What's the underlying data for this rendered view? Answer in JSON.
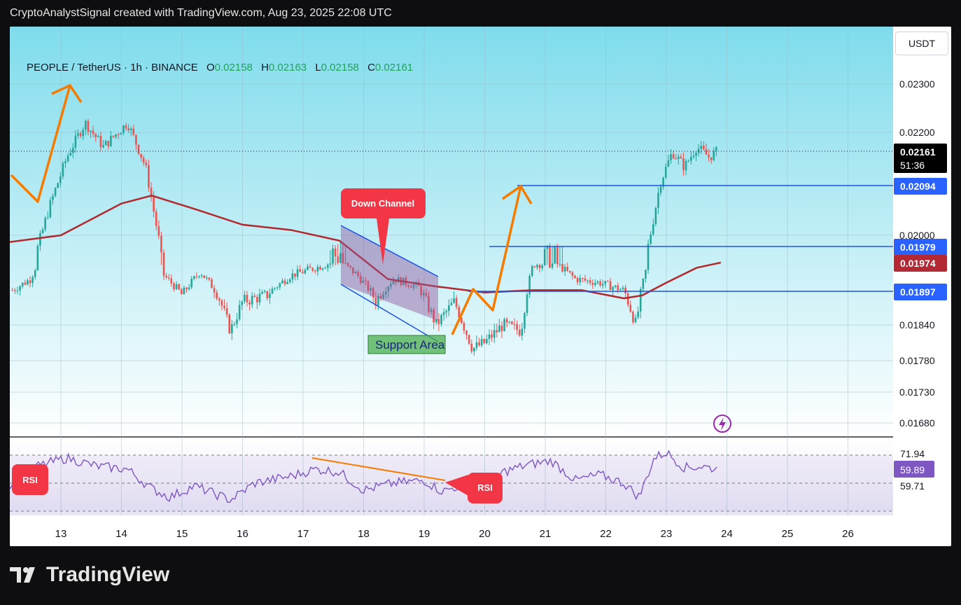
{
  "header": {
    "title": "CryptoAnalystSignal created with TradingView.com, Aug 23, 2025 22:08 UTC"
  },
  "legend": {
    "symbol": "PEOPLE / TetherUS · 1h · BINANCE",
    "open_label": "O",
    "open": "0.02158",
    "high_label": "H",
    "high": "0.02163",
    "low_label": "L",
    "low": "0.02158",
    "close_label": "C",
    "close": "0.02161"
  },
  "currency_button": "USDT",
  "annotations": {
    "down_channel": "Down Channel",
    "support_area": "Support Area",
    "rsi_left": "RSI",
    "rsi_right": "RSI"
  },
  "price_badges": {
    "current": "0.02161",
    "countdown": "51:36",
    "level_high": "0.02094",
    "level_mid": "0.01979",
    "ma": "0.01974",
    "level_low": "0.01897"
  },
  "rsi_badges": {
    "upper": "71.94",
    "rsi": "59.89",
    "ma": "59.71"
  },
  "footer": {
    "brand": "TradingView"
  },
  "colors": {
    "bull": "#26a69a",
    "bear": "#ef5350",
    "ma_line": "#b2282d",
    "levels": "#1e53e5",
    "arrows": "#f57c00",
    "rsi_line": "#7e57c2",
    "badge_blue": "#2962ff",
    "badge_red": "#b22833",
    "background_top": "#7fdcec",
    "background_bottom": "#ffffff"
  },
  "chart_data": {
    "type": "candlestick",
    "symbol": "PEOPLE / TetherUS",
    "interval": "1h",
    "exchange": "BINANCE",
    "x_tick_labels": [
      "13",
      "14",
      "15",
      "16",
      "17",
      "18",
      "19",
      "20",
      "21",
      "22",
      "23",
      "24",
      "25",
      "26"
    ],
    "y_tick_labels": [
      "0.02300",
      "0.02200",
      "0.02000",
      "0.01840",
      "0.01780",
      "0.01730",
      "0.01680"
    ],
    "y_ticks": [
      0.023,
      0.022,
      0.02,
      0.0184,
      0.0178,
      0.0173,
      0.0168
    ],
    "ylim": [
      0.0166,
      0.02385
    ],
    "price_path": [
      {
        "day": 12.2,
        "price": 0.019
      },
      {
        "day": 12.5,
        "price": 0.0193
      },
      {
        "day": 12.8,
        "price": 0.0205
      },
      {
        "day": 13.1,
        "price": 0.0215
      },
      {
        "day": 13.4,
        "price": 0.0222
      },
      {
        "day": 13.7,
        "price": 0.0217
      },
      {
        "day": 14.1,
        "price": 0.0222
      },
      {
        "day": 14.4,
        "price": 0.0213
      },
      {
        "day": 14.7,
        "price": 0.0194
      },
      {
        "day": 15.0,
        "price": 0.0189
      },
      {
        "day": 15.3,
        "price": 0.0195
      },
      {
        "day": 15.6,
        "price": 0.0189
      },
      {
        "day": 15.8,
        "price": 0.0183
      },
      {
        "day": 16.0,
        "price": 0.0188
      },
      {
        "day": 16.4,
        "price": 0.0189
      },
      {
        "day": 16.8,
        "price": 0.0194
      },
      {
        "day": 17.2,
        "price": 0.0196
      },
      {
        "day": 17.6,
        "price": 0.0198
      },
      {
        "day": 17.9,
        "price": 0.0194
      },
      {
        "day": 18.2,
        "price": 0.0188
      },
      {
        "day": 18.5,
        "price": 0.0193
      },
      {
        "day": 18.9,
        "price": 0.0191
      },
      {
        "day": 19.2,
        "price": 0.0184
      },
      {
        "day": 19.5,
        "price": 0.0188
      },
      {
        "day": 19.8,
        "price": 0.018
      },
      {
        "day": 20.0,
        "price": 0.0181
      },
      {
        "day": 20.3,
        "price": 0.0184
      },
      {
        "day": 20.6,
        "price": 0.0183
      },
      {
        "day": 20.8,
        "price": 0.0197
      },
      {
        "day": 21.2,
        "price": 0.0197
      },
      {
        "day": 21.5,
        "price": 0.0193
      },
      {
        "day": 21.9,
        "price": 0.0192
      },
      {
        "day": 22.3,
        "price": 0.019
      },
      {
        "day": 22.5,
        "price": 0.0184
      },
      {
        "day": 22.7,
        "price": 0.0198
      },
      {
        "day": 22.9,
        "price": 0.021
      },
      {
        "day": 23.1,
        "price": 0.0216
      },
      {
        "day": 23.3,
        "price": 0.0213
      },
      {
        "day": 23.5,
        "price": 0.0217
      },
      {
        "day": 23.7,
        "price": 0.0215
      },
      {
        "day": 23.85,
        "price": 0.02161
      }
    ],
    "moving_average": [
      {
        "day": 12.0,
        "price": 0.01985
      },
      {
        "day": 13.0,
        "price": 0.02
      },
      {
        "day": 14.0,
        "price": 0.0206
      },
      {
        "day": 14.5,
        "price": 0.02075
      },
      {
        "day": 15.2,
        "price": 0.0205
      },
      {
        "day": 16.0,
        "price": 0.0202
      },
      {
        "day": 16.8,
        "price": 0.0201
      },
      {
        "day": 17.6,
        "price": 0.0199
      },
      {
        "day": 18.4,
        "price": 0.0193
      },
      {
        "day": 19.2,
        "price": 0.0191
      },
      {
        "day": 20.0,
        "price": 0.01895
      },
      {
        "day": 20.8,
        "price": 0.019
      },
      {
        "day": 21.6,
        "price": 0.019
      },
      {
        "day": 22.3,
        "price": 0.01885
      },
      {
        "day": 22.6,
        "price": 0.0189
      },
      {
        "day": 23.0,
        "price": 0.0192
      },
      {
        "day": 23.5,
        "price": 0.0196
      },
      {
        "day": 23.9,
        "price": 0.01974
      }
    ],
    "horizontal_levels": [
      0.02094,
      0.01979,
      0.01897
    ],
    "current_price": 0.02161,
    "rsi": {
      "values": [
        {
          "day": 12.0,
          "rsi": 45
        },
        {
          "day": 12.6,
          "rsi": 62
        },
        {
          "day": 13.1,
          "rsi": 68
        },
        {
          "day": 13.6,
          "rsi": 62
        },
        {
          "day": 14.1,
          "rsi": 60
        },
        {
          "day": 14.5,
          "rsi": 46
        },
        {
          "day": 14.8,
          "rsi": 40
        },
        {
          "day": 15.2,
          "rsi": 48
        },
        {
          "day": 15.8,
          "rsi": 38
        },
        {
          "day": 16.2,
          "rsi": 50
        },
        {
          "day": 16.8,
          "rsi": 55
        },
        {
          "day": 17.2,
          "rsi": 60
        },
        {
          "day": 17.6,
          "rsi": 58
        },
        {
          "day": 18.0,
          "rsi": 45
        },
        {
          "day": 18.5,
          "rsi": 50
        },
        {
          "day": 19.0,
          "rsi": 52
        },
        {
          "day": 19.3,
          "rsi": 44
        },
        {
          "day": 19.7,
          "rsi": 50
        },
        {
          "day": 20.0,
          "rsi": 45
        },
        {
          "day": 20.3,
          "rsi": 58
        },
        {
          "day": 20.7,
          "rsi": 63
        },
        {
          "day": 21.1,
          "rsi": 66
        },
        {
          "day": 21.5,
          "rsi": 52
        },
        {
          "day": 21.9,
          "rsi": 56
        },
        {
          "day": 22.3,
          "rsi": 50
        },
        {
          "day": 22.55,
          "rsi": 40
        },
        {
          "day": 22.8,
          "rsi": 68
        },
        {
          "day": 23.0,
          "rsi": 72
        },
        {
          "day": 23.3,
          "rsi": 61
        },
        {
          "day": 23.6,
          "rsi": 62
        },
        {
          "day": 23.85,
          "rsi": 59.89
        }
      ],
      "upper_band": 71.94,
      "ma_value": 59.71,
      "current": 59.89
    }
  }
}
